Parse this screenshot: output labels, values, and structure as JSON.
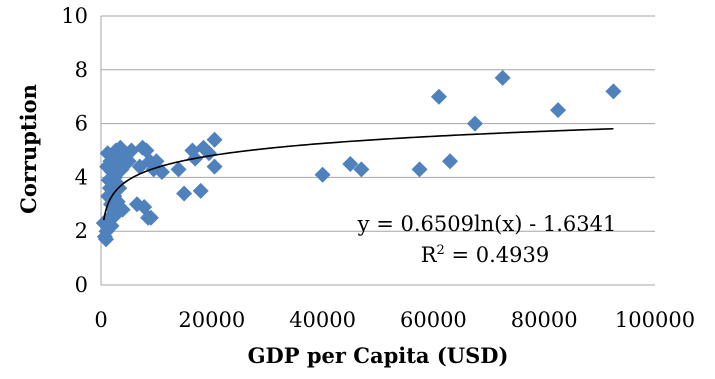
{
  "chart_data": {
    "type": "scatter",
    "title": "",
    "xlabel": "GDP per Capita (USD)",
    "ylabel": "Corruption",
    "xlim": [
      0,
      100000
    ],
    "ylim": [
      0,
      10
    ],
    "xticks": [
      0,
      20000,
      40000,
      60000,
      80000,
      100000
    ],
    "yticks": [
      0,
      2,
      4,
      6,
      8,
      10
    ],
    "grid": "horizontal",
    "legend": "none",
    "marker": "diamond",
    "colors": {
      "marker": "#4f81bd",
      "trendline": "#000000",
      "grid": "#a6a6a6"
    },
    "series": [
      {
        "points": [
          [
            500,
            2.3
          ],
          [
            700,
            1.8
          ],
          [
            900,
            1.7
          ],
          [
            1000,
            2.0
          ],
          [
            1100,
            4.4
          ],
          [
            1200,
            4.9
          ],
          [
            1300,
            3.3
          ],
          [
            1400,
            3.9
          ],
          [
            1500,
            2.5
          ],
          [
            1600,
            3.6
          ],
          [
            1700,
            4.6
          ],
          [
            1800,
            3.0
          ],
          [
            1900,
            2.2
          ],
          [
            2000,
            4.2
          ],
          [
            2100,
            3.5
          ],
          [
            2200,
            2.8
          ],
          [
            2300,
            4.8
          ],
          [
            2400,
            3.3
          ],
          [
            2500,
            4.0
          ],
          [
            2600,
            2.6
          ],
          [
            2700,
            5.0
          ],
          [
            2800,
            3.8
          ],
          [
            2900,
            4.5
          ],
          [
            3000,
            3.1
          ],
          [
            3100,
            2.9
          ],
          [
            3200,
            4.7
          ],
          [
            3300,
            3.6
          ],
          [
            3500,
            5.1
          ],
          [
            3700,
            4.3
          ],
          [
            3900,
            2.8
          ],
          [
            4500,
            4.8
          ],
          [
            5000,
            4.6
          ],
          [
            5500,
            5.0
          ],
          [
            6500,
            3.0
          ],
          [
            7000,
            4.4
          ],
          [
            7500,
            5.1
          ],
          [
            7800,
            2.9
          ],
          [
            8200,
            5.0
          ],
          [
            8500,
            2.5
          ],
          [
            8800,
            4.6
          ],
          [
            9000,
            2.5
          ],
          [
            9500,
            4.3
          ],
          [
            10000,
            4.6
          ],
          [
            11000,
            4.2
          ],
          [
            14000,
            4.3
          ],
          [
            15000,
            3.4
          ],
          [
            16500,
            5.0
          ],
          [
            17000,
            4.7
          ],
          [
            18000,
            3.5
          ],
          [
            18500,
            5.1
          ],
          [
            19500,
            4.9
          ],
          [
            20500,
            5.4
          ],
          [
            20500,
            4.4
          ],
          [
            40000,
            4.1
          ],
          [
            45000,
            4.5
          ],
          [
            47000,
            4.3
          ],
          [
            57500,
            4.3
          ],
          [
            61000,
            7.0
          ],
          [
            63000,
            4.6
          ],
          [
            67500,
            6.0
          ],
          [
            72500,
            7.7
          ],
          [
            82500,
            6.5
          ],
          [
            92500,
            7.2
          ]
        ]
      }
    ],
    "trendline": {
      "type": "logarithmic",
      "a": 0.6509,
      "b": -1.6341,
      "x_from": 500,
      "x_to": 92500,
      "equation": "y = 0.6509ln(x) - 1.6341",
      "r2_prefix": "R",
      "r2_sup": "2",
      "r2_suffix": " = 0.4939"
    }
  }
}
